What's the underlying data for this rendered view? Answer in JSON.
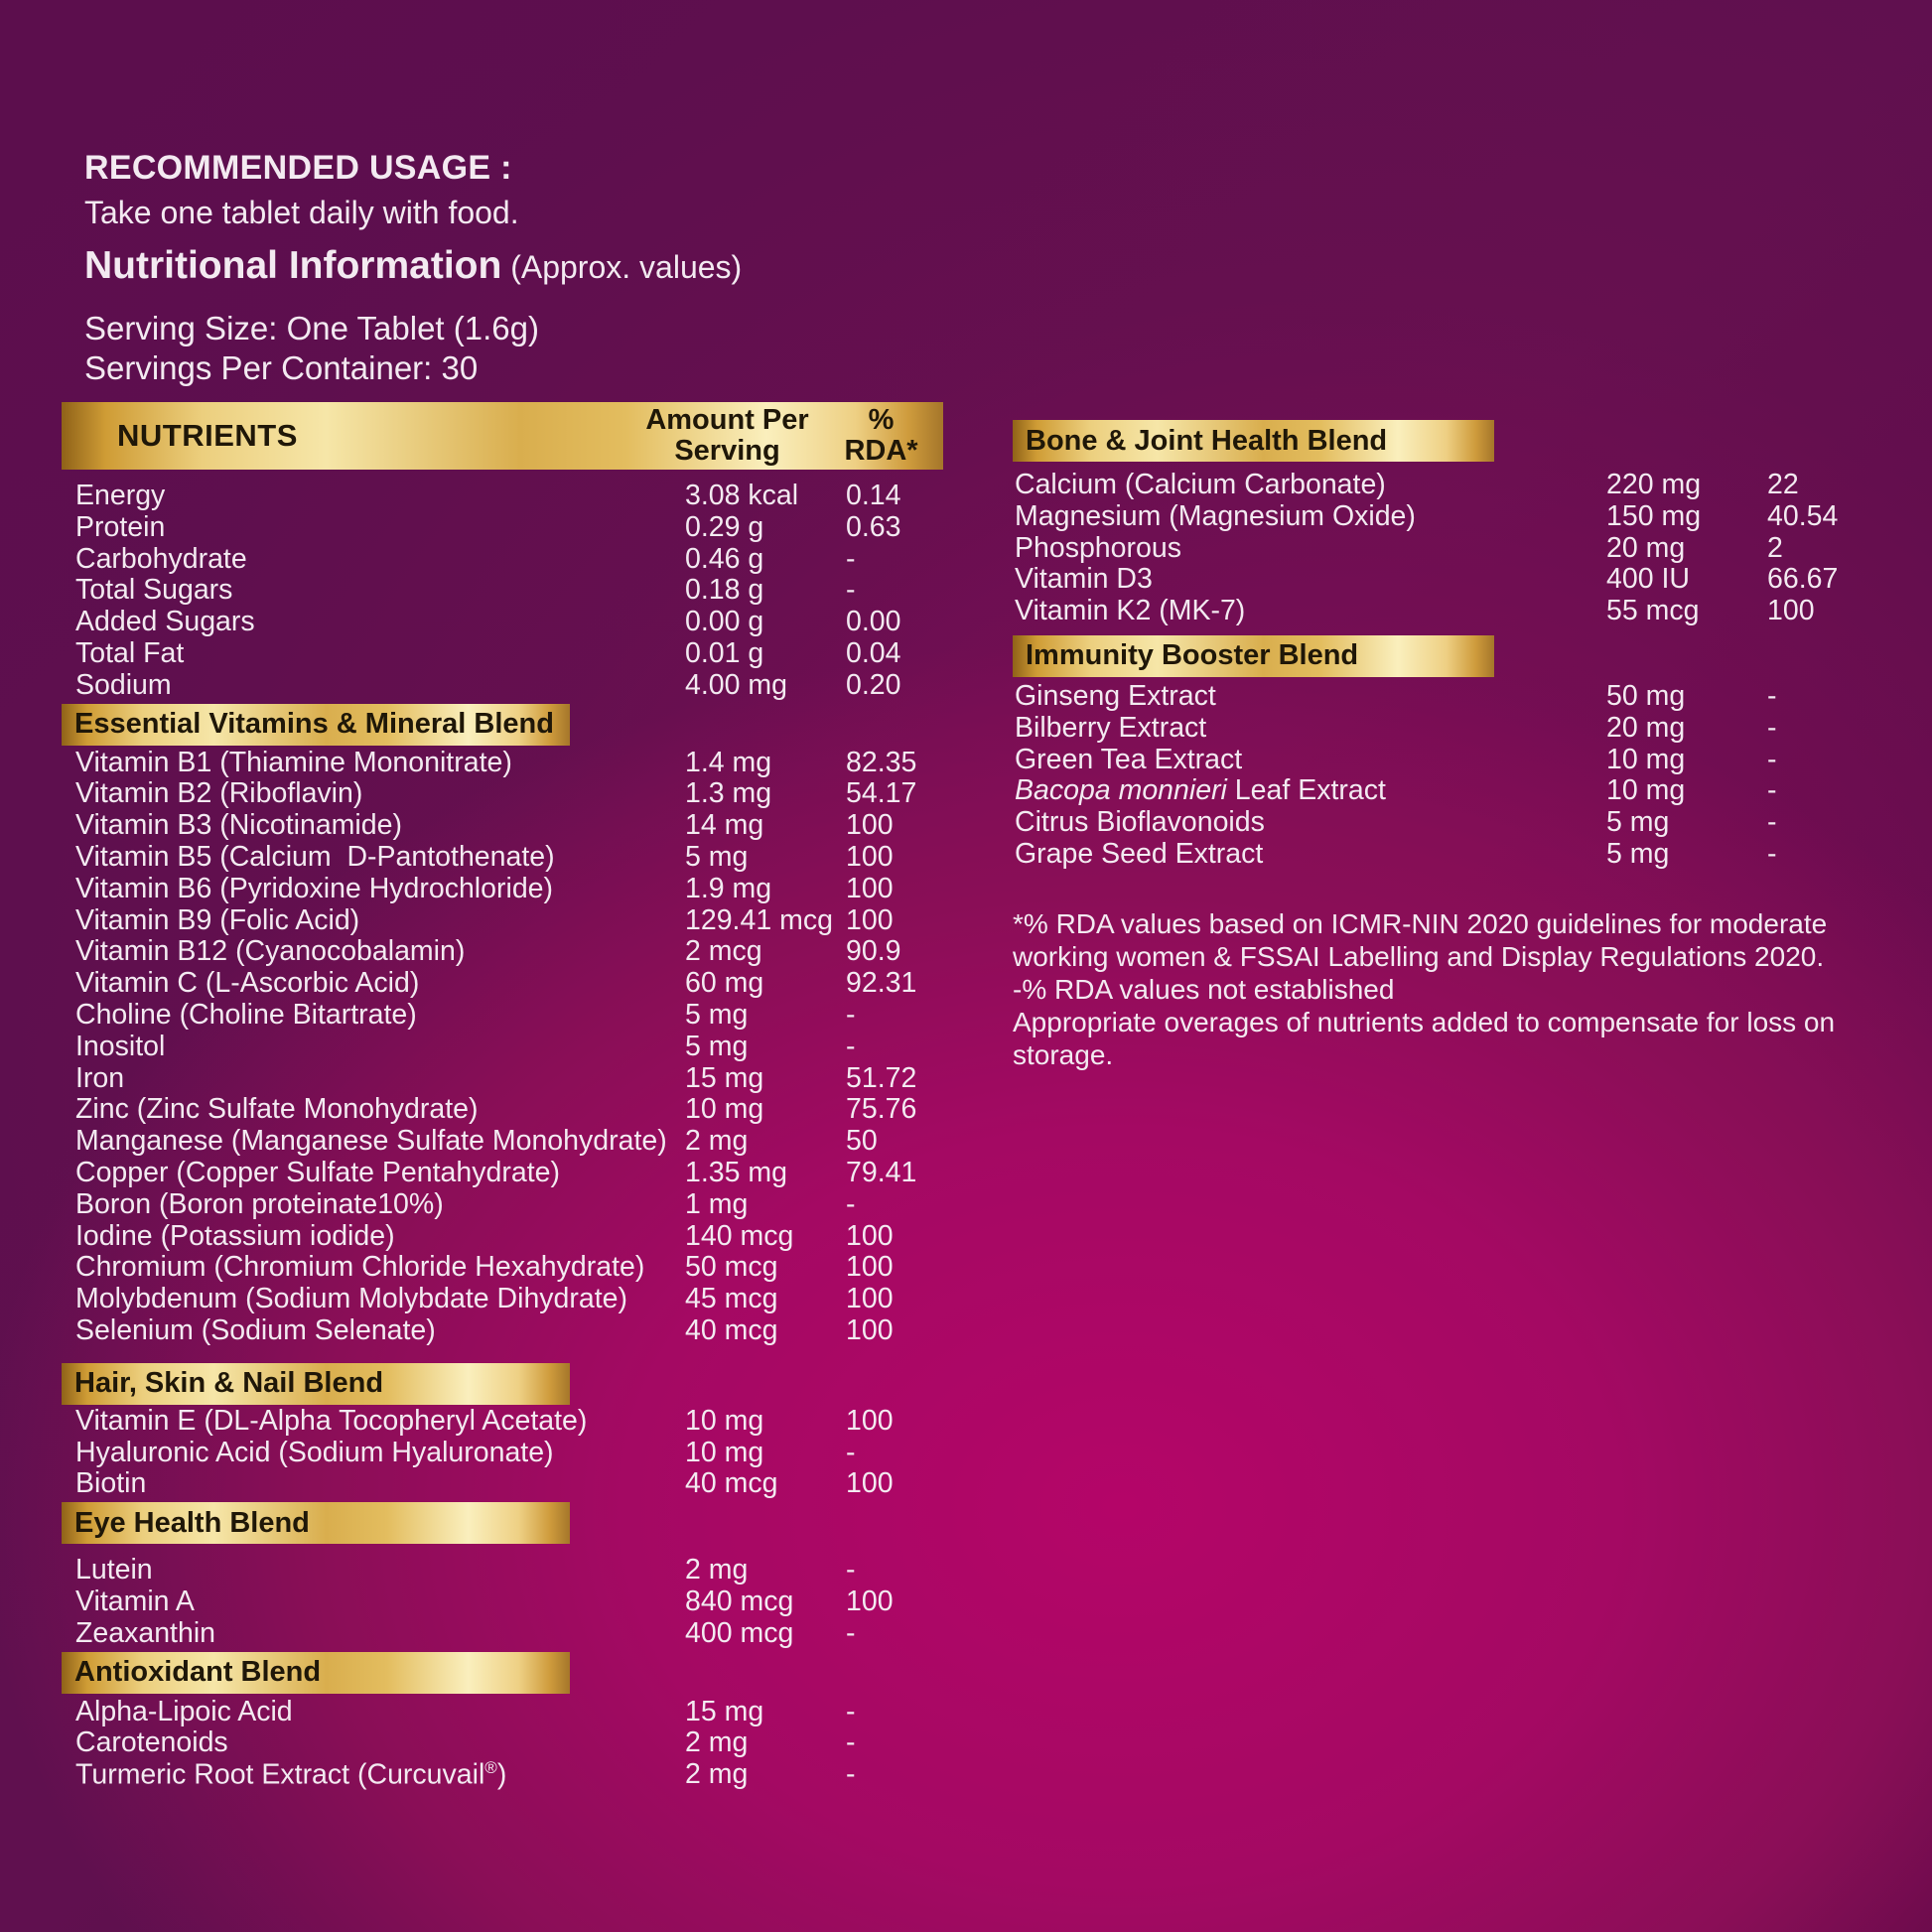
{
  "colors": {
    "background_bright_magenta": "#b40568",
    "background_dark_purple": "#5c0e4d",
    "gold_highlight": "#f6e6a8",
    "gold_base": "#cf9c35",
    "bar_text": "#1f1708",
    "body_text": "#f3eaf1"
  },
  "header": {
    "recommended_usage_title": "RECOMMENDED USAGE :",
    "recommended_usage_text": "Take one tablet daily with food.",
    "nutritional_info_title": "Nutritional Information",
    "nutritional_info_subtitle": " (Approx. values)",
    "serving_size": "Serving Size: One Tablet (1.6g)",
    "servings_per_container": "Servings Per Container: 30"
  },
  "table_header": {
    "nutrients": "NUTRIENTS",
    "amount_line1": "Amount Per",
    "amount_line2": "Serving",
    "rda_line1": "%",
    "rda_line2": "RDA*"
  },
  "left_table": {
    "blocks": [
      {
        "type": "rows",
        "rows": [
          {
            "name": "Energy",
            "amount": "3.08 kcal",
            "rda": "0.14"
          },
          {
            "name": "Protein",
            "amount": "0.29 g",
            "rda": "0.63"
          },
          {
            "name": "Carbohydrate",
            "amount": "0.46 g",
            "rda": "-"
          },
          {
            "name": "Total Sugars",
            "amount": "0.18 g",
            "rda": "-"
          },
          {
            "name": "Added Sugars",
            "amount": "0.00 g",
            "rda": "0.00"
          },
          {
            "name": "Total Fat",
            "amount": "0.01 g",
            "rda": "0.04"
          },
          {
            "name": "Sodium",
            "amount": "4.00 mg",
            "rda": "0.20"
          }
        ]
      },
      {
        "type": "bar",
        "title": "Essential Vitamins & Mineral Blend"
      },
      {
        "type": "rows",
        "rows": [
          {
            "name": "Vitamin B1 (Thiamine Mononitrate)",
            "amount": "1.4 mg",
            "rda": "82.35"
          },
          {
            "name": "Vitamin B2 (Riboflavin)",
            "amount": "1.3 mg",
            "rda": "54.17"
          },
          {
            "name": "Vitamin B3 (Nicotinamide)",
            "amount": "14 mg",
            "rda": "100"
          },
          {
            "name": "Vitamin B5 (Calcium  D-Pantothenate)",
            "amount": "5 mg",
            "rda": "100"
          },
          {
            "name": "Vitamin B6 (Pyridoxine Hydrochloride)",
            "amount": "1.9 mg",
            "rda": "100"
          },
          {
            "name": "Vitamin B9 (Folic Acid)",
            "amount": "129.41 mcg",
            "rda": "100"
          },
          {
            "name": "Vitamin B12 (Cyanocobalamin)",
            "amount": "2 mcg",
            "rda": "90.9"
          },
          {
            "name": "Vitamin C (L-Ascorbic Acid)",
            "amount": "60 mg",
            "rda": "92.31"
          },
          {
            "name": "Choline (Choline Bitartrate)",
            "amount": "5 mg",
            "rda": "-"
          },
          {
            "name": "Inositol",
            "amount": "5 mg",
            "rda": "-"
          },
          {
            "name": "Iron",
            "amount": "15 mg",
            "rda": "51.72"
          },
          {
            "name": "Zinc (Zinc Sulfate Monohydrate)",
            "amount": "10 mg",
            "rda": "75.76"
          },
          {
            "name": "Manganese (Manganese Sulfate Monohydrate)",
            "amount": "2 mg",
            "rda": "50"
          },
          {
            "name": "Copper (Copper Sulfate Pentahydrate)",
            "amount": "1.35 mg",
            "rda": "79.41"
          },
          {
            "name": "Boron (Boron proteinate10%)",
            "amount": "1 mg",
            "rda": "-"
          },
          {
            "name": "Iodine (Potassium iodide)",
            "amount": "140 mcg",
            "rda": "100"
          },
          {
            "name": "Chromium (Chromium Chloride Hexahydrate)",
            "amount": "50 mcg",
            "rda": "100"
          },
          {
            "name": "Molybdenum (Sodium Molybdate Dihydrate)",
            "amount": "45 mcg",
            "rda": "100"
          },
          {
            "name": "Selenium (Sodium Selenate)",
            "amount": "40 mcg",
            "rda": "100"
          }
        ]
      },
      {
        "type": "bar",
        "title": "Hair, Skin & Nail Blend"
      },
      {
        "type": "rows",
        "rows": [
          {
            "name": "Vitamin E (DL-Alpha Tocopheryl Acetate)",
            "amount": "10 mg",
            "rda": "100"
          },
          {
            "name": "Hyaluronic Acid (Sodium Hyaluronate)",
            "amount": "10 mg",
            "rda": "-"
          },
          {
            "name": "Biotin",
            "amount": "40 mcg",
            "rda": "100"
          }
        ]
      },
      {
        "type": "bar",
        "title": "Eye Health Blend"
      },
      {
        "type": "rows",
        "rows": [
          {
            "name": "Lutein",
            "amount": "2 mg",
            "rda": "-"
          },
          {
            "name": "Vitamin A",
            "amount": "840 mcg",
            "rda": "100"
          },
          {
            "name": "Zeaxanthin",
            "amount": "400 mcg",
            "rda": "-"
          }
        ]
      },
      {
        "type": "bar",
        "title": "Antioxidant Blend"
      },
      {
        "type": "rows",
        "rows": [
          {
            "name": "Alpha-Lipoic Acid",
            "amount": "15 mg",
            "rda": "-"
          },
          {
            "name": "Carotenoids",
            "amount": "2 mg",
            "rda": "-"
          },
          {
            "name": "Turmeric Root Extract (Curcuvail®)",
            "parts": [
              {
                "t": "Turmeric Root Extract (Curcuvail"
              },
              {
                "t": "®",
                "style": "sup"
              },
              {
                "t": ")"
              }
            ],
            "amount": "2 mg",
            "rda": "-"
          }
        ]
      }
    ]
  },
  "right_panel": {
    "blocks": [
      {
        "type": "bar",
        "title": "Bone & Joint Health Blend"
      },
      {
        "type": "rows",
        "rows": [
          {
            "name": "Calcium (Calcium Carbonate)",
            "amount": "220 mg",
            "rda": "22"
          },
          {
            "name": "Magnesium (Magnesium Oxide)",
            "amount": "150 mg",
            "rda": "40.54"
          },
          {
            "name": "Phosphorous",
            "amount": "20 mg",
            "rda": "2"
          },
          {
            "name": "Vitamin D3",
            "amount": "400 IU",
            "rda": "66.67"
          },
          {
            "name": "Vitamin K2 (MK-7)",
            "amount": "55 mcg",
            "rda": "100"
          }
        ]
      },
      {
        "type": "bar",
        "title": "Immunity Booster Blend"
      },
      {
        "type": "rows",
        "rows": [
          {
            "name": "Ginseng Extract",
            "amount": "50 mg",
            "rda": "-"
          },
          {
            "name": "Bilberry Extract",
            "amount": "20 mg",
            "rda": "-"
          },
          {
            "name": "Green Tea Extract",
            "amount": "10 mg",
            "rda": "-"
          },
          {
            "name": "Bacopa monnieri Leaf Extract",
            "parts": [
              {
                "t": "Bacopa monnieri",
                "style": "italic"
              },
              {
                "t": " Leaf Extract"
              }
            ],
            "amount": "10 mg",
            "rda": "-"
          },
          {
            "name": "Citrus Bioflavonoids",
            "amount": "5 mg",
            "rda": "-"
          },
          {
            "name": "Grape Seed Extract",
            "amount": "5 mg",
            "rda": "-"
          }
        ]
      },
      {
        "type": "notes",
        "lines": [
          "*% RDA values based on ICMR-NIN 2020 guidelines for moderate",
          "working women & FSSAI Labelling and Display Regulations 2020.",
          "-% RDA values not established",
          "Appropriate overages of nutrients added to compensate for loss on storage."
        ]
      }
    ]
  }
}
